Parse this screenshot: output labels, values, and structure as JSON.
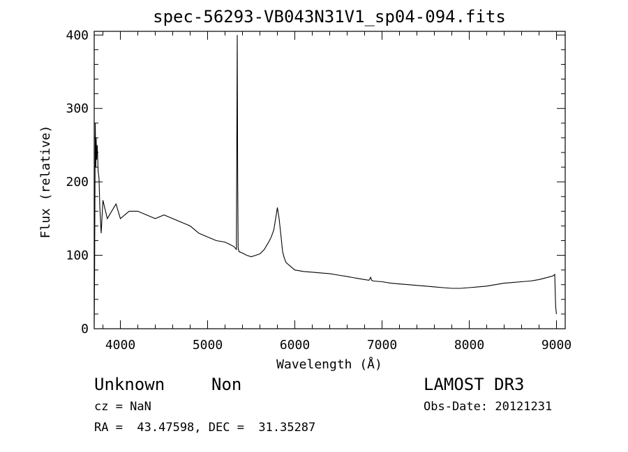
{
  "chart_data": {
    "type": "line",
    "title": "spec-56293-VB043N31V1_sp04-094.fits",
    "xlabel": "Wavelength (Å)",
    "ylabel": "Flux (relative)",
    "xlim": [
      3700,
      9100
    ],
    "ylim": [
      0,
      405
    ],
    "xticks": [
      4000,
      5000,
      6000,
      7000,
      8000,
      9000
    ],
    "yticks": [
      0,
      100,
      200,
      300,
      400
    ],
    "grid": false,
    "series": [
      {
        "x": [
          3700,
          3705,
          3712,
          3718,
          3722,
          3728,
          3735,
          3745,
          3755,
          3765,
          3780,
          3800,
          3850,
          3900,
          3950,
          4000,
          4100,
          4200,
          4300,
          4400,
          4500,
          4600,
          4700,
          4800,
          4900,
          5000,
          5100,
          5200,
          5250,
          5300,
          5330,
          5340,
          5345,
          5350,
          5360,
          5400,
          5450,
          5500,
          5550,
          5600,
          5650,
          5700,
          5730,
          5760,
          5780,
          5800,
          5820,
          5840,
          5860,
          5880,
          5900,
          5950,
          6000,
          6100,
          6200,
          6300,
          6400,
          6500,
          6600,
          6700,
          6800,
          6850,
          6870,
          6880,
          6900,
          7000,
          7100,
          7200,
          7300,
          7400,
          7500,
          7600,
          7700,
          7800,
          7900,
          8000,
          8100,
          8200,
          8300,
          8400,
          8500,
          8600,
          8700,
          8800,
          8900,
          8960,
          8980,
          8990,
          9000
        ],
        "y": [
          5,
          80,
          280,
          220,
          260,
          230,
          250,
          215,
          205,
          165,
          130,
          175,
          150,
          160,
          170,
          150,
          160,
          160,
          155,
          150,
          155,
          150,
          145,
          140,
          130,
          125,
          120,
          118,
          115,
          112,
          108,
          400,
          210,
          110,
          105,
          103,
          100,
          98,
          100,
          102,
          108,
          118,
          125,
          135,
          150,
          165,
          150,
          128,
          105,
          96,
          90,
          85,
          80,
          78,
          77,
          76,
          75,
          73,
          71,
          69,
          67,
          66,
          70,
          66,
          65,
          64,
          62,
          61,
          60,
          59,
          58,
          57,
          56,
          55,
          55,
          56,
          57,
          58,
          60,
          62,
          63,
          64,
          65,
          67,
          70,
          72,
          74,
          30,
          20
        ]
      }
    ]
  },
  "info": {
    "class": "Unknown",
    "subclass": "Non",
    "survey": "LAMOST DR3",
    "cz": "cz = NaN",
    "obs_date": "Obs-Date: 20121231",
    "coords": "RA =  43.47598, DEC =  31.35287"
  }
}
